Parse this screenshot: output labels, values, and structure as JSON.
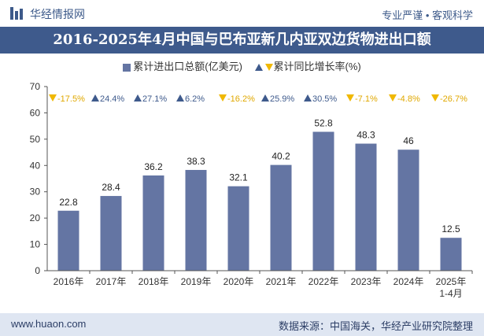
{
  "header": {
    "brand": "华经情报网",
    "slogan": "专业严谨 • 客观科学"
  },
  "chart_data": {
    "type": "bar",
    "title": "2016-2025年4月中国与巴布亚新几内亚双边货物进出口额",
    "categories": [
      "2016年",
      "2017年",
      "2018年",
      "2019年",
      "2020年",
      "2021年",
      "2022年",
      "2023年",
      "2024年",
      "2025年\n1-4月"
    ],
    "series": [
      {
        "name": "累计进出口总额(亿美元)",
        "values": [
          22.8,
          28.4,
          36.2,
          38.3,
          32.1,
          40.2,
          52.8,
          48.3,
          46,
          12.5
        ]
      }
    ],
    "growth": {
      "name": "累计同比增长率(%)",
      "labels": [
        "-17.5%",
        "24.4%",
        "27.1%",
        "6.2%",
        "-16.2%",
        "25.9%",
        "30.5%",
        "-7.1%",
        "-4.8%",
        "-26.7%"
      ],
      "values": [
        -17.5,
        24.4,
        27.1,
        6.2,
        -16.2,
        25.9,
        30.5,
        -7.1,
        -4.8,
        -26.7
      ]
    },
    "ylim": [
      0,
      70
    ],
    "yticks": [
      0,
      10,
      20,
      30,
      40,
      50,
      60,
      70
    ],
    "bar_color": "#6475a3",
    "up_color": "#3e5a8c",
    "down_color": "#f0b800"
  },
  "footer": {
    "site": "www.huaon.com",
    "source": "数据来源：中国海关，华经产业研究院整理"
  }
}
